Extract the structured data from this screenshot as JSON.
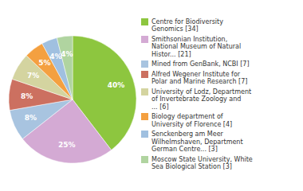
{
  "chart_data": {
    "type": "pie",
    "categories": [
      "Centre for Biodiversity\nGenomics [34]",
      "Smithsonian Institution,\nNational Museum of Natural\nHistor... [21]",
      "Mined from GenBank, NCBI [7]",
      "Alfred Wegener Institute for\nPolar and Marine Research [7]",
      "University of Lodz, Department\nof Invertebrate Zoology and\n... [6]",
      "Biology department of\nUniversity of Florence [4]",
      "Senckenberg am Meer\nWilhelmshaven, Department\nGerman Centre... [3]",
      "Moscow State University, White\nSea Biological Station [3]"
    ],
    "values": [
      40,
      25,
      8,
      8,
      7,
      5,
      4,
      4
    ],
    "value_labels": [
      "40%",
      "25%",
      "8%",
      "8%",
      "7%",
      "5%",
      "4%",
      "4%"
    ],
    "colors": [
      "#8dc63f",
      "#d4aad4",
      "#a8c4e0",
      "#cc7060",
      "#d4d4a0",
      "#f4a040",
      "#a0c0e0",
      "#b0d4a0"
    ],
    "data_labels": true,
    "legend": "right"
  }
}
